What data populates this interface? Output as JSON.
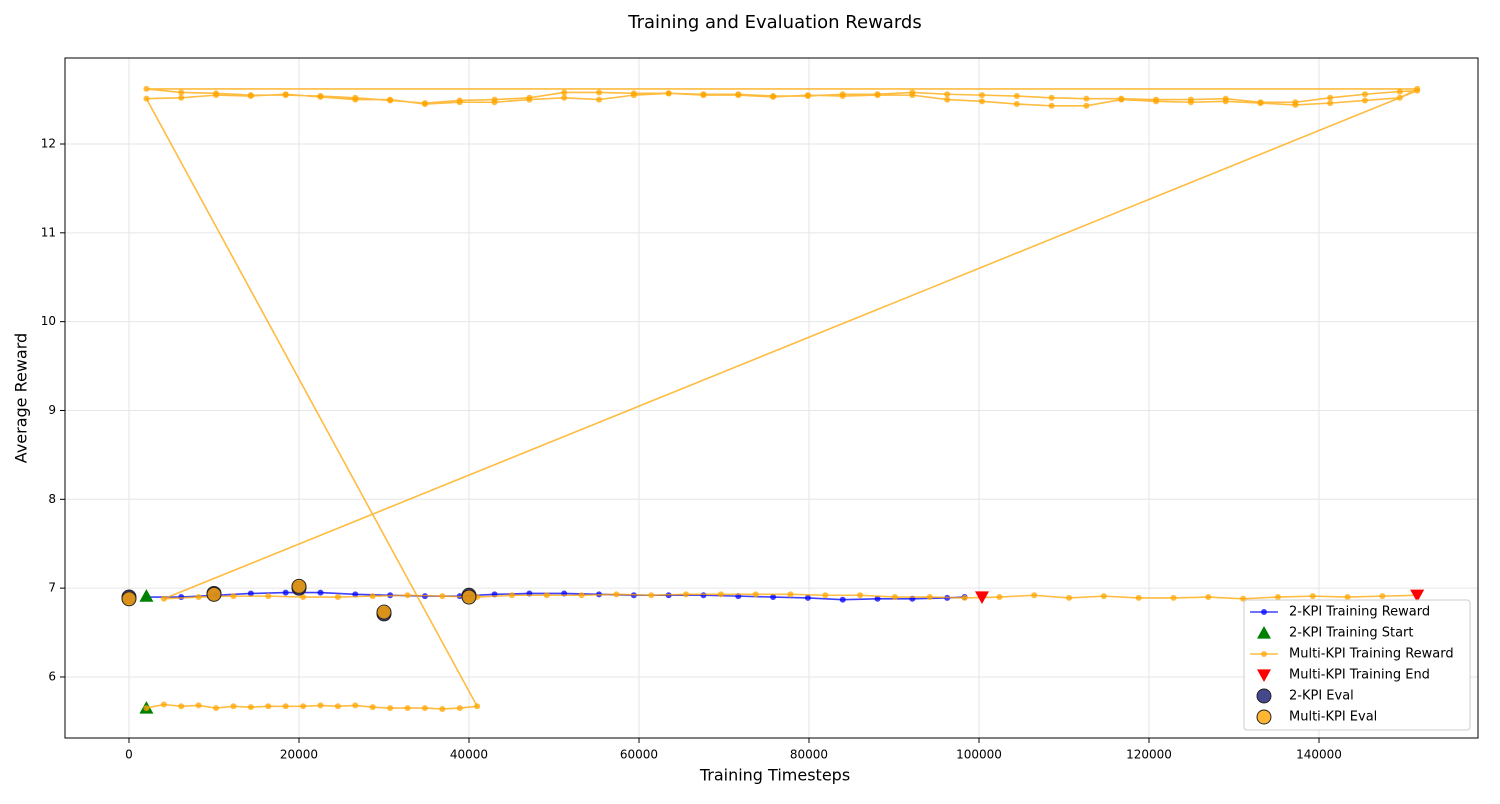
{
  "chart_data": {
    "type": "line",
    "title": "Training and Evaluation Rewards",
    "x_label": "Training Timesteps",
    "y_label": "Average Reward",
    "xlim": [
      -7529,
      158706
    ],
    "ylim": [
      5.313,
      12.968
    ],
    "xticks": [
      0,
      20000,
      40000,
      60000,
      80000,
      100000,
      120000,
      140000
    ],
    "yticks": [
      6,
      7,
      8,
      9,
      10,
      11,
      12
    ],
    "grid": true,
    "legend": "lower right",
    "series": [
      {
        "name": "2-KPI Training Reward",
        "color": "#0000ff",
        "marker": "line",
        "x": [
          2048,
          6144,
          10240,
          14336,
          18432,
          22528,
          26624,
          30720,
          34816,
          38912,
          43008,
          47104,
          51200,
          55296,
          59392,
          63488,
          67584,
          71680,
          75776,
          79872,
          83968,
          88064,
          92160,
          96256,
          98304
        ],
        "values": [
          6.9,
          6.9,
          6.92,
          6.94,
          6.95,
          6.95,
          6.93,
          6.92,
          6.91,
          6.91,
          6.93,
          6.94,
          6.94,
          6.93,
          6.92,
          6.92,
          6.92,
          6.91,
          6.9,
          6.89,
          6.87,
          6.88,
          6.88,
          6.89,
          6.9
        ]
      },
      {
        "name": "2-KPI Training Start",
        "color": "#008000",
        "marker": "triangle-up",
        "x": [
          2048,
          2048
        ],
        "values": [
          6.91,
          5.65
        ]
      },
      {
        "name": "Multi-KPI Training Reward",
        "color": "#ffa500",
        "marker": "line",
        "x": [
          2048,
          4096,
          6144,
          8192,
          10240,
          12288,
          14336,
          16384,
          18432,
          20480,
          22528,
          24576,
          26624,
          28672,
          30720,
          32768,
          34816,
          36864,
          38912,
          40960,
          2048,
          6144,
          10240,
          14336,
          18432,
          22528,
          26624,
          30720,
          34816,
          38912,
          43008,
          47104,
          51200,
          55296,
          59392,
          63488,
          67584,
          71680,
          75776,
          79872,
          83968,
          88064,
          92160,
          96256,
          100352,
          104448,
          108544,
          112640,
          116736,
          120832,
          124928,
          129024,
          133120,
          137216,
          141312,
          145408,
          149504,
          151552,
          2048,
          6144,
          10240,
          14336,
          18432,
          22528,
          26624,
          30720,
          34816,
          38912,
          43008,
          47104,
          51200,
          55296,
          59392,
          63488,
          67584,
          71680,
          75776,
          79872,
          83968,
          88064,
          92160,
          96256,
          100352,
          104448,
          108544,
          112640,
          116736,
          120832,
          124928,
          129024,
          133120,
          137216,
          141312,
          145408,
          149504,
          151552,
          4096,
          8192,
          12288,
          16384,
          20480,
          24576,
          28672,
          32768,
          36864,
          40960,
          45056,
          49152,
          53248,
          57344,
          61440,
          65536,
          69632,
          73728,
          77824,
          81920,
          86016,
          90112,
          94208,
          98304,
          102400,
          106496,
          110592,
          114688,
          118784,
          122880,
          126976,
          131072,
          135168,
          139264,
          143360,
          147456,
          151552
        ],
        "values": [
          5.65,
          5.69,
          5.67,
          5.68,
          5.65,
          5.67,
          5.66,
          5.67,
          5.67,
          5.67,
          5.68,
          5.67,
          5.68,
          5.66,
          5.65,
          5.65,
          5.65,
          5.64,
          5.65,
          5.67,
          12.51,
          12.52,
          12.55,
          12.54,
          12.56,
          12.53,
          12.5,
          12.5,
          12.45,
          12.47,
          12.47,
          12.5,
          12.52,
          12.5,
          12.55,
          12.57,
          12.55,
          12.55,
          12.53,
          12.55,
          12.54,
          12.55,
          12.55,
          12.5,
          12.48,
          12.45,
          12.43,
          12.43,
          12.5,
          12.48,
          12.47,
          12.48,
          12.46,
          12.44,
          12.46,
          12.49,
          12.52,
          12.62,
          12.62,
          12.58,
          12.57,
          12.55,
          12.55,
          12.54,
          12.52,
          12.49,
          12.46,
          12.49,
          12.5,
          12.52,
          12.58,
          12.58,
          12.57,
          12.57,
          12.56,
          12.56,
          12.54,
          12.54,
          12.56,
          12.56,
          12.58,
          12.56,
          12.55,
          12.54,
          12.52,
          12.51,
          12.51,
          12.5,
          12.5,
          12.51,
          12.47,
          12.47,
          12.52,
          12.56,
          12.59,
          12.6,
          6.88,
          6.9,
          6.91,
          6.91,
          6.9,
          6.9,
          6.91,
          6.92,
          6.91,
          6.9,
          6.92,
          6.92,
          6.92,
          6.93,
          6.92,
          6.93,
          6.93,
          6.93,
          6.93,
          6.92,
          6.92,
          6.9,
          6.9,
          6.89,
          6.9,
          6.92,
          6.89,
          6.91,
          6.89,
          6.89,
          6.9,
          6.88,
          6.9,
          6.91,
          6.9,
          6.91,
          6.92
        ]
      },
      {
        "name": "Multi-KPI Training End",
        "color": "#ff0000",
        "marker": "triangle-down",
        "x": [
          100352,
          151552
        ],
        "values": [
          6.9,
          6.92
        ]
      },
      {
        "name": "2-KPI Eval",
        "color": "#191970",
        "marker": "circle",
        "x": [
          0,
          10000,
          20000,
          30000,
          40000
        ],
        "values": [
          6.9,
          6.94,
          7.0,
          6.71,
          6.92
        ]
      },
      {
        "name": "Multi-KPI Eval",
        "color": "#ffa500",
        "marker": "circle",
        "x": [
          0,
          10000,
          20000,
          30000,
          40000
        ],
        "values": [
          6.88,
          6.93,
          7.02,
          6.73,
          6.9
        ]
      }
    ]
  }
}
